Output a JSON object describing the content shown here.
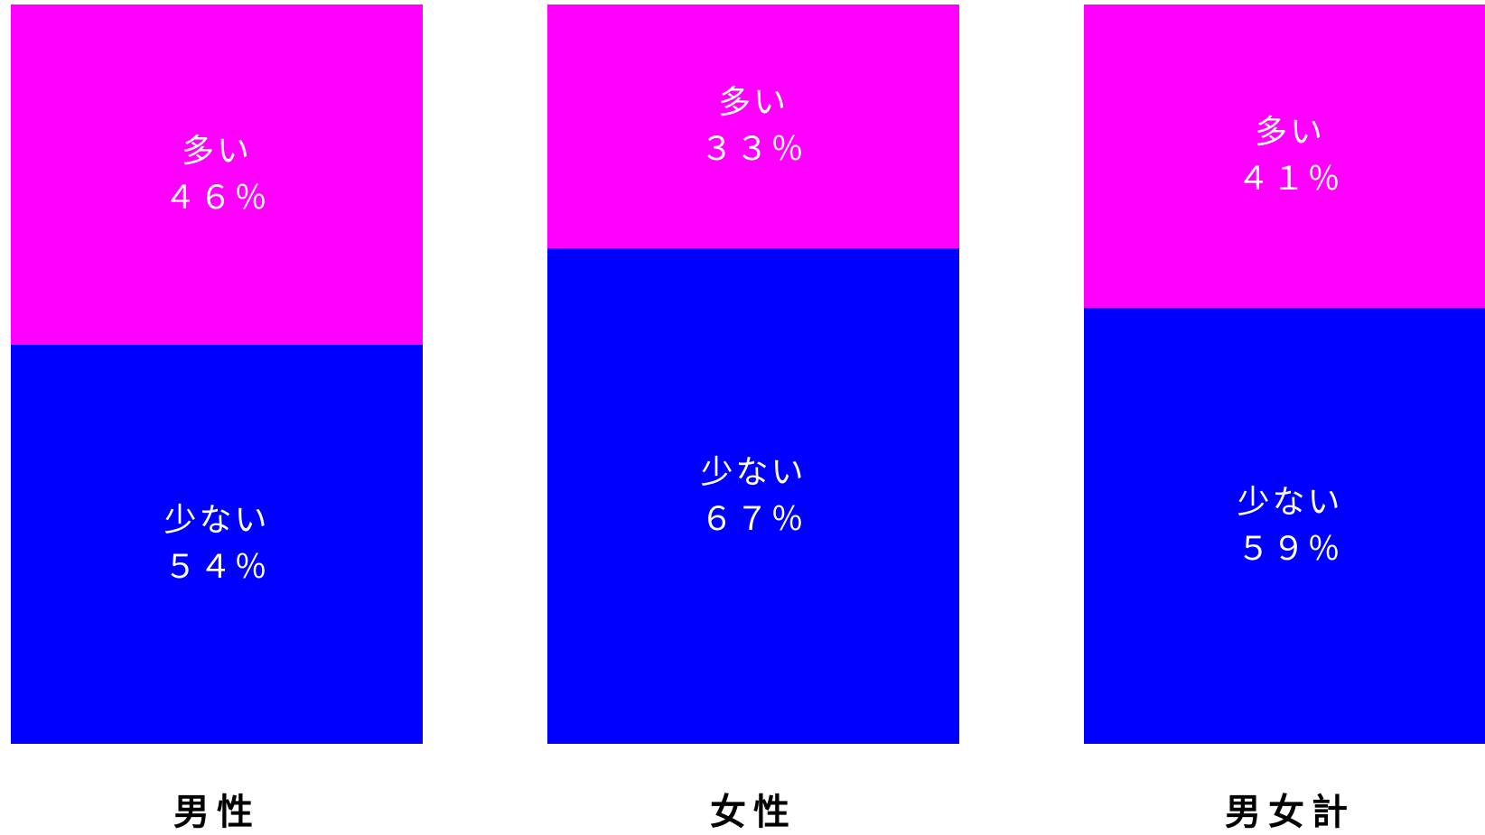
{
  "colors": {
    "more": "#ff00ff",
    "less": "#0000ff",
    "text_on_bar": "#ffffff",
    "category_text": "#000000"
  },
  "chart_data": {
    "type": "bar",
    "stacked": true,
    "normalized": true,
    "ylim": [
      0,
      100
    ],
    "categories": [
      "男性",
      "女性",
      "男女計"
    ],
    "series": [
      {
        "name": "多い",
        "values": [
          46,
          33,
          41
        ],
        "labels": [
          "４６％",
          "３３％",
          "４１％"
        ]
      },
      {
        "name": "少ない",
        "values": [
          54,
          67,
          59
        ],
        "labels": [
          "５４％",
          "６７％",
          "５９％"
        ]
      }
    ],
    "grid": false,
    "legend": "none"
  }
}
